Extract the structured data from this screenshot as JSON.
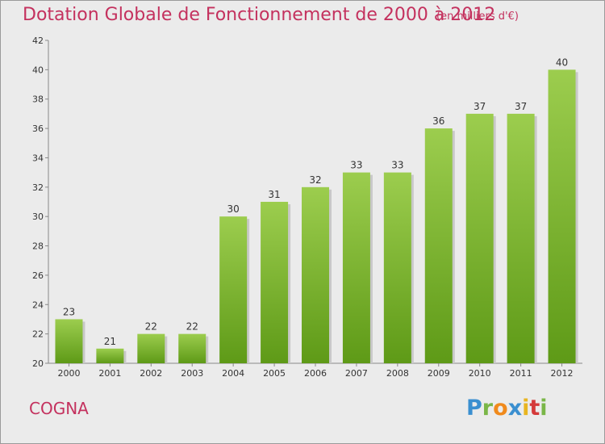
{
  "title": "Dotation Globale de Fonctionnement de 2000 à 2012",
  "subtitle": "(en milliers d'€)",
  "location": "COGNA",
  "logo": {
    "text": "Proxiti",
    "letters": [
      "P",
      "r",
      "o",
      "x",
      "i",
      "t",
      "i"
    ]
  },
  "colors": {
    "title": "#c4315e",
    "bar_top": "#9ccd4e",
    "bar_bottom": "#5e9a17",
    "background": "#ebebeb"
  },
  "chart_data": {
    "type": "bar",
    "title": "Dotation Globale de Fonctionnement de 2000 à 2012",
    "subtitle": "(en milliers d'€)",
    "xlabel": "",
    "ylabel": "",
    "categories": [
      "2000",
      "2001",
      "2002",
      "2003",
      "2004",
      "2005",
      "2006",
      "2007",
      "2008",
      "2009",
      "2010",
      "2011",
      "2012"
    ],
    "values": [
      23,
      21,
      22,
      22,
      30,
      31,
      32,
      33,
      33,
      36,
      37,
      37,
      40
    ],
    "ylim": [
      20,
      42
    ],
    "yticks": [
      20,
      22,
      24,
      26,
      28,
      30,
      32,
      34,
      36,
      38,
      40,
      42
    ],
    "grid": false,
    "legend": "none"
  }
}
